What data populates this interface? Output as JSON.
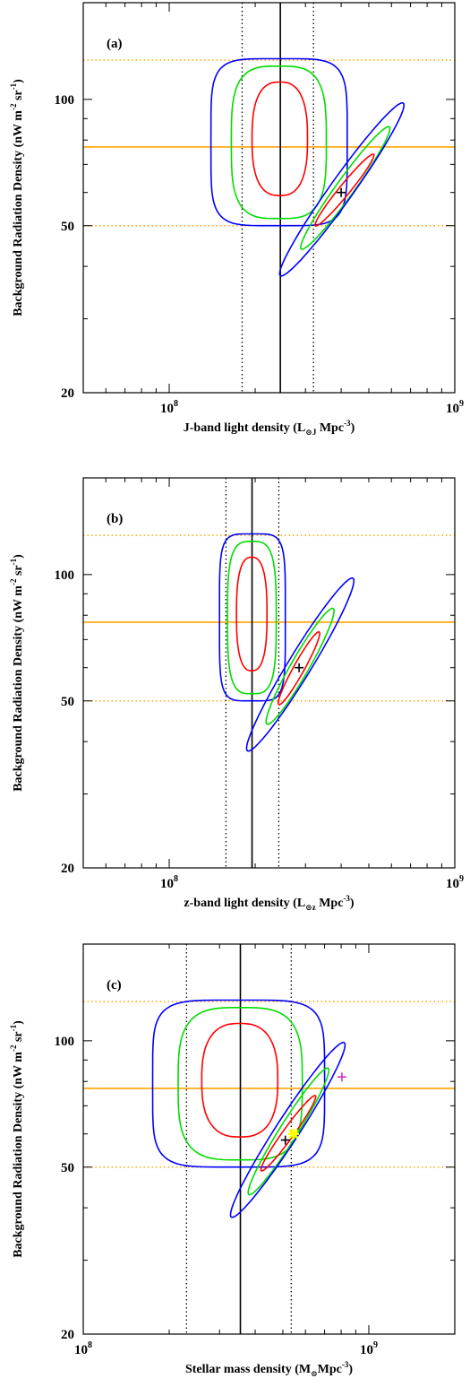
{
  "chart_data": [
    {
      "type": "line",
      "panel_label": "(a)",
      "xlabel": "J-band light density (L⊙J Mpc⁻³)",
      "xlabel_main": "J-band light density (L",
      "xlabel_sub": "⊙J",
      "xlabel_rest": " Mpc",
      "xlabel_sup": "-3",
      "xlabel_end": ")",
      "ylabel": "Background Radiation Density (nW m⁻² sr⁻¹)",
      "x_scale": "log",
      "y_scale": "log",
      "xlim": [
        50000000.0,
        1000000000.0
      ],
      "ylim": [
        20,
        170
      ],
      "x_ticks": [
        {
          "value": 100000000.0,
          "base": "10",
          "exp": "8"
        },
        {
          "value": 1000000000.0,
          "base": "10",
          "exp": "9"
        }
      ],
      "y_ticks": [
        {
          "value": 20,
          "label": "20"
        },
        {
          "value": 50,
          "label": "50"
        },
        {
          "value": 100,
          "label": "100"
        }
      ],
      "vlines": [
        {
          "x": 245000000.0,
          "style": "solid",
          "color": "#000000"
        },
        {
          "x": 180000000.0,
          "style": "dotted",
          "color": "#000000"
        },
        {
          "x": 320000000.0,
          "style": "dotted",
          "color": "#000000"
        }
      ],
      "hlines": [
        {
          "y": 77,
          "style": "solid",
          "color": "#ffa500"
        },
        {
          "y": 124,
          "style": "dotted",
          "color": "#ffa500"
        },
        {
          "y": 50,
          "style": "dotted",
          "color": "#ffa500"
        }
      ],
      "contour_sets": [
        {
          "shape": "round",
          "cx": 245000000.0,
          "cy": 80,
          "levels": [
            {
              "color": "#ff0000",
              "x": [
                195000000.0,
                305000000.0
              ],
              "y": [
                59,
                110
              ]
            },
            {
              "color": "#00dd00",
              "x": [
                165000000.0,
                355000000.0
              ],
              "y": [
                52,
                120
              ]
            },
            {
              "color": "#0000ff",
              "x": [
                140000000.0,
                420000000.0
              ],
              "y": [
                50,
                125
              ]
            }
          ]
        },
        {
          "shape": "diagonal",
          "levels": [
            {
              "color": "#ff0000",
              "from": [
                325000000.0,
                50
              ],
              "to": [
                520000000.0,
                74
              ]
            },
            {
              "color": "#00dd00",
              "from": [
                290000000.0,
                44
              ],
              "to": [
                590000000.0,
                86
              ]
            },
            {
              "color": "#0000ff",
              "from": [
                245000000.0,
                38
              ],
              "to": [
                660000000.0,
                98
              ]
            }
          ]
        }
      ],
      "markers": [
        {
          "x": 400000000.0,
          "y": 60,
          "symbol": "+",
          "color": "#000000"
        }
      ]
    },
    {
      "type": "line",
      "panel_label": "(b)",
      "xlabel": "z-band light density (L⊙z Mpc⁻³)",
      "xlabel_main": "z-band light density (L",
      "xlabel_sub": "⊙z",
      "xlabel_rest": " Mpc",
      "xlabel_sup": "-3",
      "xlabel_end": ")",
      "ylabel": "Background Radiation Density (nW m⁻² sr⁻¹)",
      "x_scale": "log",
      "y_scale": "log",
      "xlim": [
        50000000.0,
        1000000000.0
      ],
      "ylim": [
        20,
        170
      ],
      "x_ticks": [
        {
          "value": 100000000.0,
          "base": "10",
          "exp": "8"
        },
        {
          "value": 1000000000.0,
          "base": "10",
          "exp": "9"
        }
      ],
      "y_ticks": [
        {
          "value": 20,
          "label": "20"
        },
        {
          "value": 50,
          "label": "50"
        },
        {
          "value": 100,
          "label": "100"
        }
      ],
      "vlines": [
        {
          "x": 195000000.0,
          "style": "solid",
          "color": "#000000"
        },
        {
          "x": 158000000.0,
          "style": "dotted",
          "color": "#000000"
        },
        {
          "x": 242000000.0,
          "style": "dotted",
          "color": "#000000"
        }
      ],
      "hlines": [
        {
          "y": 77,
          "style": "solid",
          "color": "#ffa500"
        },
        {
          "y": 124,
          "style": "dotted",
          "color": "#ffa500"
        },
        {
          "y": 50,
          "style": "dotted",
          "color": "#ffa500"
        }
      ],
      "contour_sets": [
        {
          "shape": "round",
          "cx": 195000000.0,
          "cy": 80,
          "levels": [
            {
              "color": "#ff0000",
              "x": [
                172000000.0,
                220000000.0
              ],
              "y": [
                59,
                110
              ]
            },
            {
              "color": "#00dd00",
              "x": [
                160000000.0,
                237000000.0
              ],
              "y": [
                52,
                120
              ]
            },
            {
              "color": "#0000ff",
              "x": [
                150000000.0,
                255000000.0
              ],
              "y": [
                50,
                125
              ]
            }
          ]
        },
        {
          "shape": "diagonal",
          "levels": [
            {
              "color": "#ff0000",
              "from": [
                242000000.0,
                49
              ],
              "to": [
                335000000.0,
                73
              ]
            },
            {
              "color": "#00dd00",
              "from": [
                220000000.0,
                44
              ],
              "to": [
                375000000.0,
                83
              ]
            },
            {
              "color": "#0000ff",
              "from": [
                188000000.0,
                38
              ],
              "to": [
                440000000.0,
                98
              ]
            }
          ]
        }
      ],
      "markers": [
        {
          "x": 285000000.0,
          "y": 60,
          "symbol": "+",
          "color": "#000000"
        }
      ]
    },
    {
      "type": "line",
      "panel_label": "(c)",
      "xlabel": "Stellar mass density (M⊙Mpc⁻³)",
      "xlabel_main": "Stellar mass density (M",
      "xlabel_sub": "⊙",
      "xlabel_rest": "Mpc",
      "xlabel_sup": "-3",
      "xlabel_end": ")",
      "ylabel": "Background Radiation Density (nW m⁻² sr⁻¹)",
      "x_scale": "log",
      "y_scale": "log",
      "xlim": [
        100000000.0,
        2000000000.0
      ],
      "ylim": [
        20,
        170
      ],
      "x_ticks": [
        {
          "value": 100000000.0,
          "base": "10",
          "exp": "8"
        },
        {
          "value": 1000000000.0,
          "base": "10",
          "exp": "9"
        }
      ],
      "y_ticks": [
        {
          "value": 20,
          "label": "20"
        },
        {
          "value": 50,
          "label": "50"
        },
        {
          "value": 100,
          "label": "100"
        }
      ],
      "vlines": [
        {
          "x": 355000000.0,
          "style": "solid",
          "color": "#000000"
        },
        {
          "x": 230000000.0,
          "style": "dotted",
          "color": "#000000"
        },
        {
          "x": 535000000.0,
          "style": "dotted",
          "color": "#000000"
        }
      ],
      "hlines": [
        {
          "y": 77,
          "style": "solid",
          "color": "#ffa500"
        },
        {
          "y": 124,
          "style": "dotted",
          "color": "#ffa500"
        },
        {
          "y": 50,
          "style": "dotted",
          "color": "#ffa500"
        }
      ],
      "contour_sets": [
        {
          "shape": "round",
          "cx": 355000000.0,
          "cy": 80,
          "levels": [
            {
              "color": "#ff0000",
              "x": [
                260000000.0,
                480000000.0
              ],
              "y": [
                59,
                110
              ]
            },
            {
              "color": "#00dd00",
              "x": [
                215000000.0,
                585000000.0
              ],
              "y": [
                52,
                120
              ]
            },
            {
              "color": "#0000ff",
              "x": [
                175000000.0,
                700000000.0
              ],
              "y": [
                50,
                125
              ]
            }
          ]
        },
        {
          "shape": "diagonal",
          "levels": [
            {
              "color": "#ff0000",
              "from": [
                420000000.0,
                49
              ],
              "to": [
                650000000.0,
                74
              ]
            },
            {
              "color": "#00dd00",
              "from": [
                380000000.0,
                43
              ],
              "to": [
                720000000.0,
                86
              ]
            },
            {
              "color": "#0000ff",
              "from": [
                330000000.0,
                38
              ],
              "to": [
                820000000.0,
                99
              ]
            }
          ]
        }
      ],
      "markers": [
        {
          "x": 510000000.0,
          "y": 58,
          "symbol": "+",
          "color": "#000000"
        },
        {
          "x": 545000000.0,
          "y": 60,
          "symbol": "*",
          "color": "#ffff00"
        },
        {
          "x": 805000000.0,
          "y": 82,
          "symbol": "+",
          "color": "#cc33cc"
        }
      ]
    }
  ]
}
